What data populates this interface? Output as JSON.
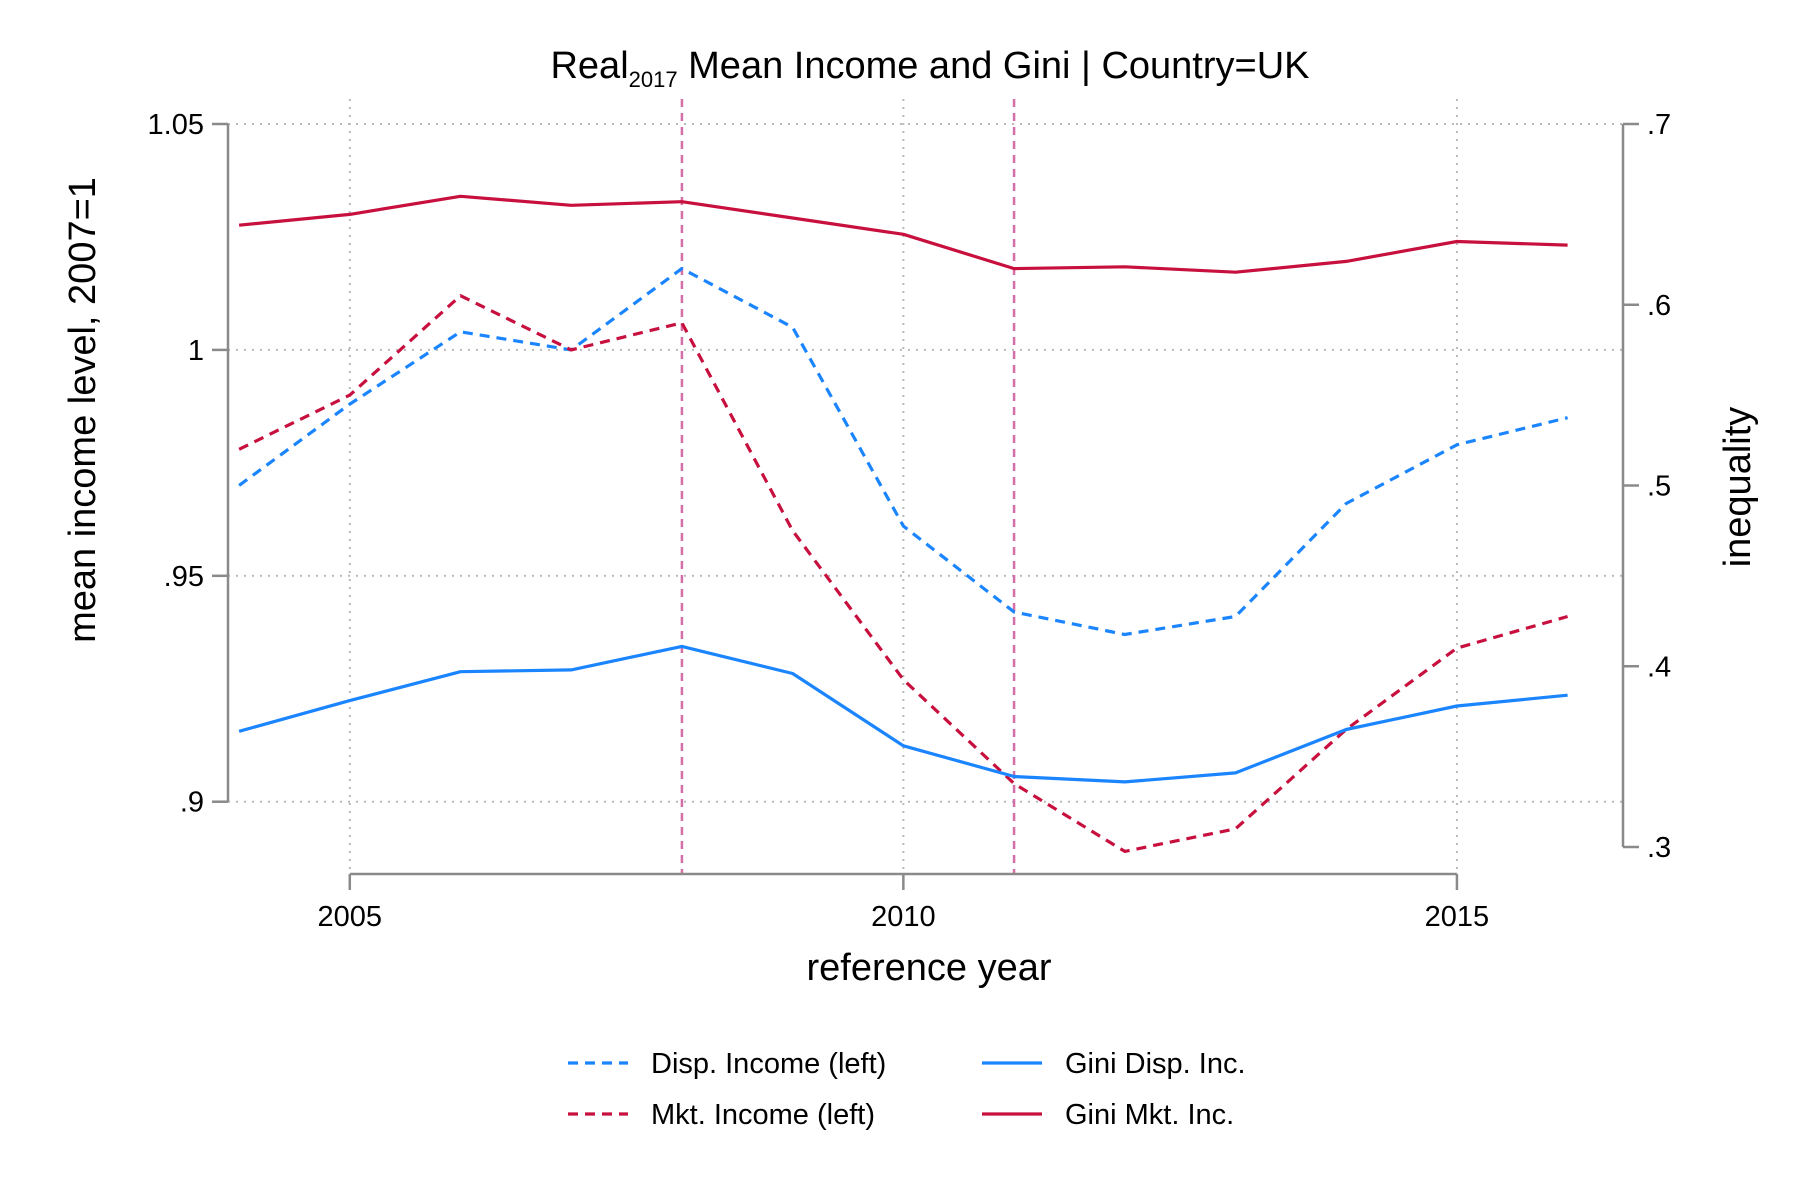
{
  "chart_data": {
    "type": "line",
    "title": "Real2017 Mean Income and Gini | Country=UK",
    "title_parts": {
      "main": "Real",
      "subscript": "2017",
      "rest": " Mean Income and Gini | Country=UK"
    },
    "xlabel": "reference year",
    "ylabel_left": "mean income level, 2007=1",
    "ylabel_right": "inequality",
    "x": [
      2004,
      2005,
      2006,
      2007,
      2008,
      2009,
      2010,
      2011,
      2012,
      2013,
      2014,
      2015,
      2016
    ],
    "xlim": [
      2003.9,
      2016.5
    ],
    "xticks": [
      2005,
      2010,
      2015
    ],
    "xtick_labels": [
      "2005",
      "2010",
      "2015"
    ],
    "ylim_left": [
      0.884,
      1.05
    ],
    "yticks_left": [
      0.9,
      0.95,
      1,
      1.05
    ],
    "ytick_labels_left": [
      ".9",
      ".95",
      "1",
      "1.05"
    ],
    "ylim_right": [
      0.3,
      0.7
    ],
    "yticks_right": [
      0.3,
      0.4,
      0.5,
      0.6,
      0.7
    ],
    "ytick_labels_right": [
      ".3",
      ".4",
      ".5",
      ".6",
      ".7"
    ],
    "vlines": [
      2008,
      2011
    ],
    "grid": true,
    "legend_position": "bottom",
    "series": [
      {
        "name": "Disp. Income (left)",
        "axis": "left",
        "style": "dashed",
        "color": "#1a85ff",
        "values": [
          0.97,
          0.988,
          1.004,
          1.0,
          1.018,
          1.005,
          0.961,
          0.942,
          0.937,
          0.941,
          0.966,
          0.979,
          0.985
        ]
      },
      {
        "name": "Mkt. Income (left)",
        "axis": "left",
        "style": "dashed",
        "color": "#c8103e",
        "values": [
          0.978,
          0.99,
          1.012,
          1.0,
          1.006,
          0.96,
          0.927,
          0.904,
          0.889,
          0.894,
          0.916,
          0.934,
          0.941
        ]
      },
      {
        "name": "Gini Disp. Inc.",
        "axis": "right",
        "style": "solid",
        "color": "#1a85ff",
        "values": [
          0.364,
          0.381,
          0.397,
          0.398,
          0.411,
          0.396,
          0.356,
          0.339,
          0.336,
          0.341,
          0.365,
          0.378,
          0.384
        ]
      },
      {
        "name": "Gini Mkt. Inc.",
        "axis": "right",
        "style": "solid",
        "color": "#c8103e",
        "values": [
          0.644,
          0.65,
          0.66,
          0.655,
          0.657,
          0.648,
          0.639,
          0.62,
          0.621,
          0.618,
          0.624,
          0.635,
          0.633
        ]
      }
    ]
  }
}
